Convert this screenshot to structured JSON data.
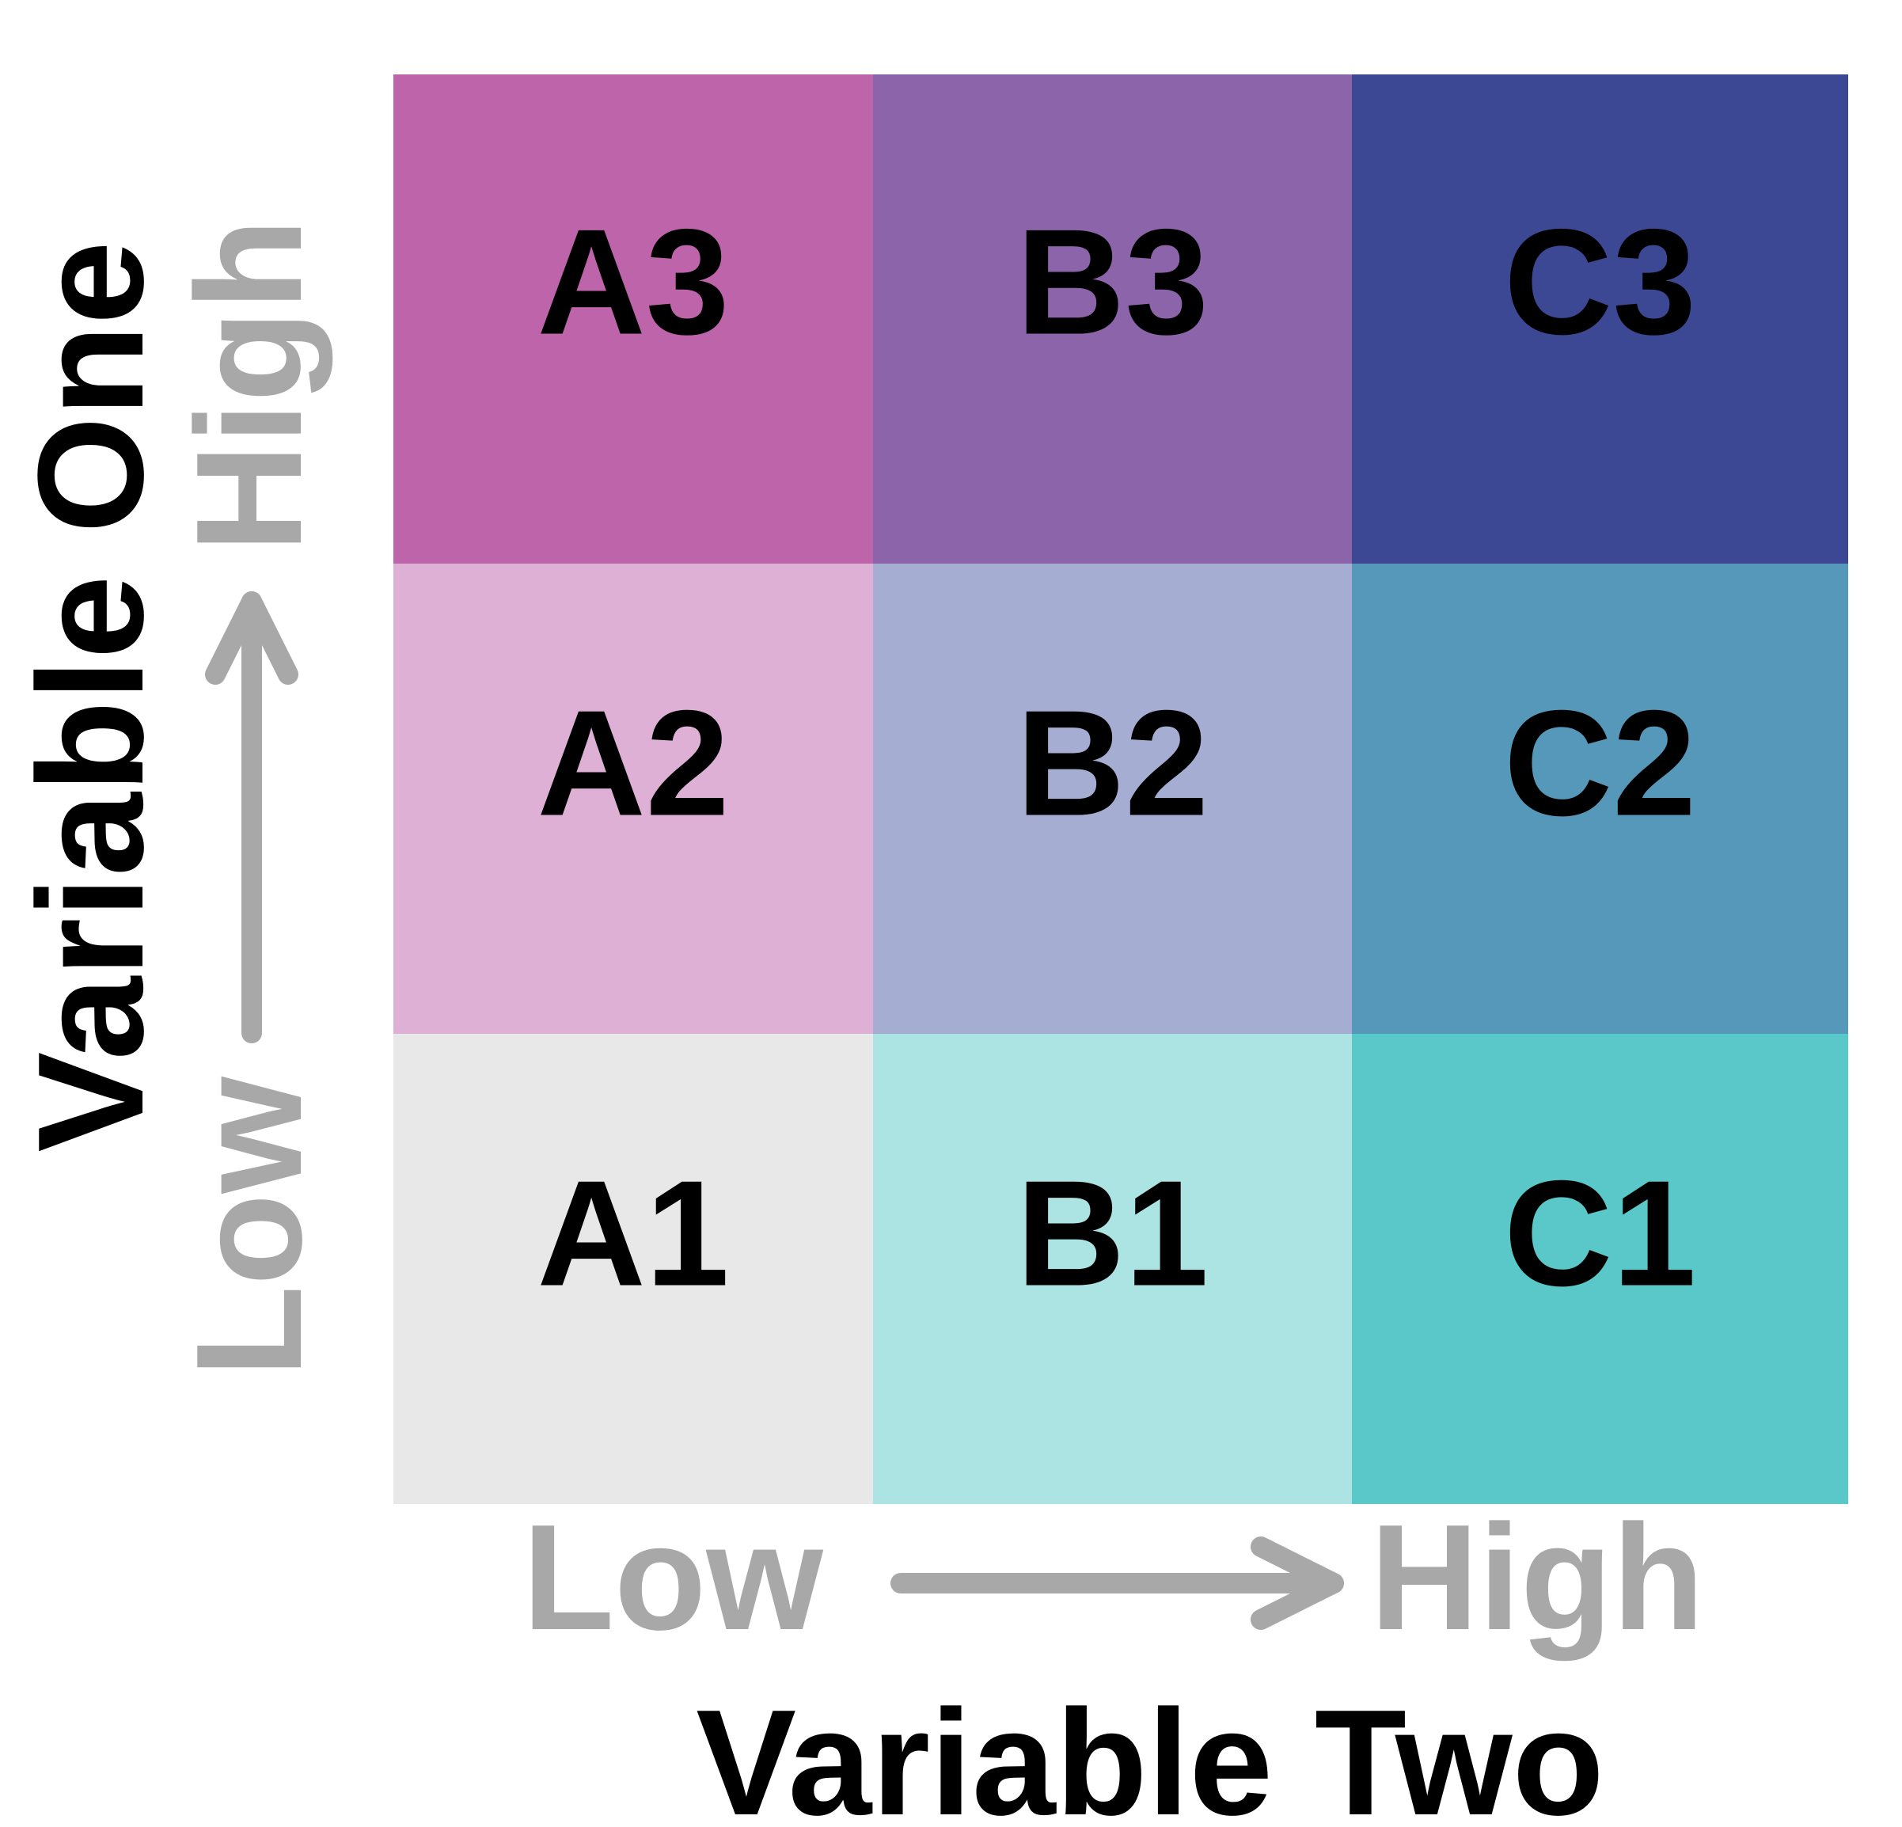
{
  "chart_data": {
    "type": "heatmap",
    "title": "",
    "xlabel": "Variable Two",
    "ylabel": "Variable One",
    "x_axis": {
      "low_label": "Low",
      "high_label": "High"
    },
    "y_axis": {
      "low_label": "Low",
      "high_label": "High"
    },
    "columns": [
      "A",
      "B",
      "C"
    ],
    "rows": [
      "3",
      "2",
      "1"
    ],
    "cells": [
      {
        "label": "A3",
        "col": 0,
        "row": 2,
        "color": "#be64aa"
      },
      {
        "label": "B3",
        "col": 1,
        "row": 2,
        "color": "#8c64aa"
      },
      {
        "label": "C3",
        "col": 2,
        "row": 2,
        "color": "#3c4894"
      },
      {
        "label": "A2",
        "col": 0,
        "row": 1,
        "color": "#dfb0d6"
      },
      {
        "label": "B2",
        "col": 1,
        "row": 1,
        "color": "#a5add3"
      },
      {
        "label": "C2",
        "col": 2,
        "row": 1,
        "color": "#5698b9"
      },
      {
        "label": "A1",
        "col": 0,
        "row": 0,
        "color": "#e8e8e8"
      },
      {
        "label": "B1",
        "col": 1,
        "row": 0,
        "color": "#ace4e4"
      },
      {
        "label": "C1",
        "col": 2,
        "row": 0,
        "color": "#5ac8c8"
      }
    ],
    "axis_label_color": "#a8a8a8",
    "grid": false,
    "legend": "none"
  }
}
